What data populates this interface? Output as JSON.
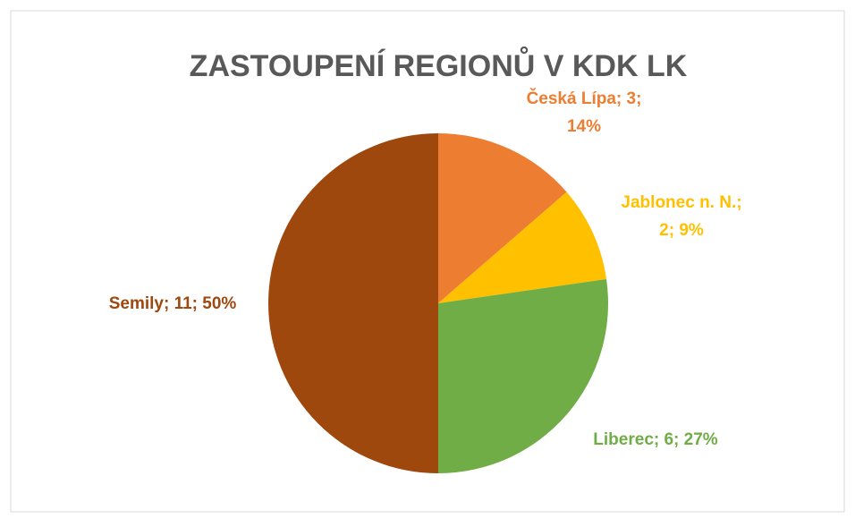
{
  "chart_data": {
    "type": "pie",
    "title": "ZASTOUPENÍ REGIONŮ V KDK LK",
    "categories": [
      "Česká Lípa",
      "Jablonec n. N.",
      "Liberec",
      "Semily"
    ],
    "values": [
      3,
      2,
      6,
      11
    ],
    "value_labels": [
      [
        "Česká Lípa; 3;",
        "14%"
      ],
      [
        "Jablonec n. N.;",
        "2; 9%"
      ],
      [
        "Liberec; 6; 27%"
      ],
      [
        "Semily; 11; 50%"
      ]
    ],
    "colors": [
      "#ED7D31",
      "#FFC000",
      "#70AD47",
      "#9E480E"
    ]
  }
}
